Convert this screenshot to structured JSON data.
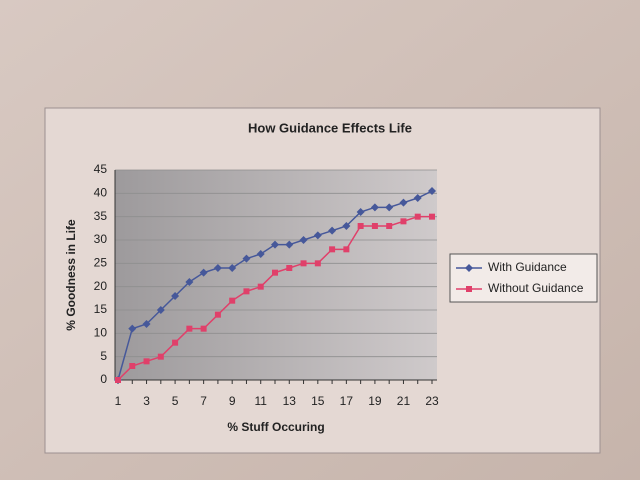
{
  "chart_data": {
    "type": "line",
    "title": "How Guidance Effects Life",
    "x_label": "% Stuff Occuring",
    "y_label": "% Goodness in Life",
    "categories": [
      "1",
      null,
      "3",
      null,
      "5",
      null,
      "7",
      null,
      "9",
      null,
      "11",
      null,
      "13",
      null,
      "15",
      null,
      "17",
      null,
      "19",
      null,
      "21",
      null,
      "23"
    ],
    "series": [
      {
        "name": "With Guidance",
        "color": "#46589a",
        "marker": "diamond",
        "values": [
          0,
          11,
          12,
          15,
          18,
          21,
          23,
          24,
          24,
          26,
          27,
          29,
          29,
          30,
          31,
          32,
          33,
          36,
          37,
          37,
          38,
          39,
          40.5
        ]
      },
      {
        "name": "Without Guidance",
        "color": "#e0406a",
        "marker": "square",
        "values": [
          0,
          3,
          4,
          5,
          8,
          11,
          11,
          14,
          17,
          19,
          20,
          23,
          24,
          25,
          25,
          28,
          28,
          33,
          33,
          33,
          34,
          35,
          35
        ]
      }
    ],
    "ylim": [
      0,
      45
    ],
    "yticks": [
      0,
      5,
      10,
      15,
      20,
      25,
      30,
      35,
      40,
      45
    ],
    "grid": true,
    "legend": "right"
  }
}
